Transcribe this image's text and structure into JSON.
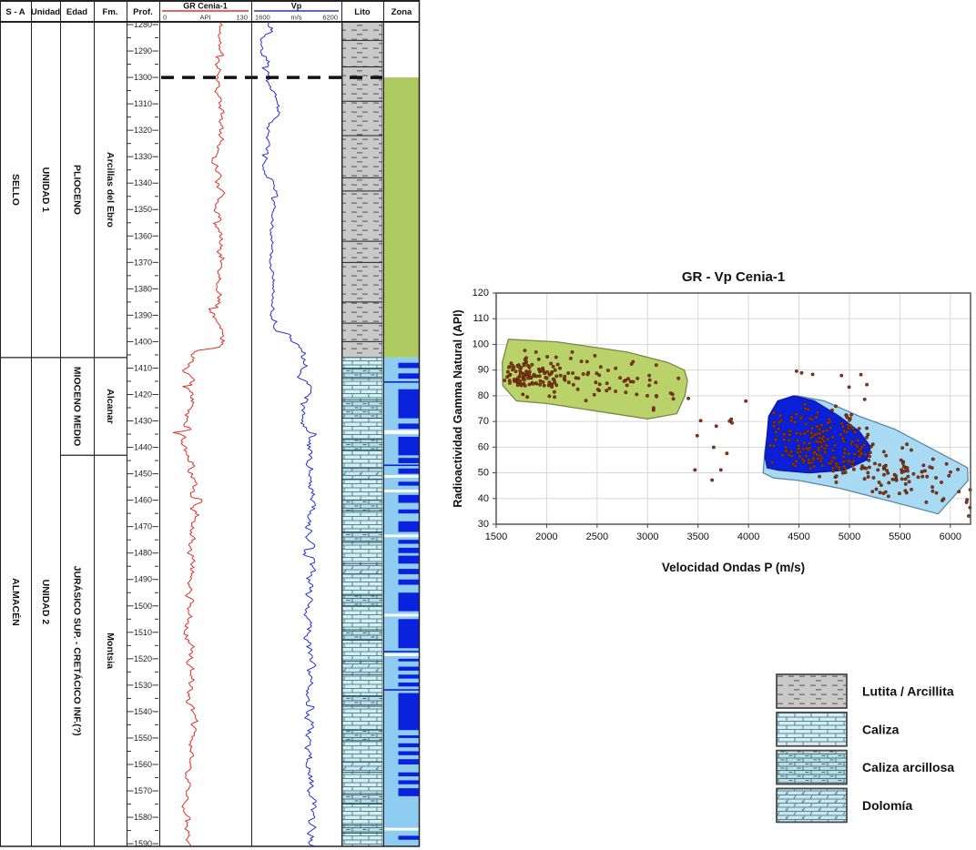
{
  "colors": {
    "gr_curve": "#e03127",
    "vp_curve": "#2b2fd4",
    "zona_green": "#adca60",
    "zona_lightblue": "#8ecdf1",
    "zona_navy": "#0a21dd",
    "marker_line": "#111111",
    "grid_line": "#d8d8d8",
    "lutita_bg": "#c9c9c9",
    "caliza_bg": "#d8edf2",
    "caliza_arcillosa_bg": "#bfdde4",
    "dolomia_bg": "#cde6ee"
  },
  "chart_data": [
    {
      "type": "line",
      "role": "well_log_panel",
      "header": {
        "sa": "S - A",
        "unidad": "Unidad",
        "edad": "Edad",
        "fm": "Fm.",
        "prof": "Prof.",
        "gr_title": "GR Cenia-1",
        "gr_min": "0",
        "gr_unit": "API",
        "gr_max": "130",
        "vp_title": "Vp",
        "vp_min": "1600",
        "vp_unit": "m/s",
        "vp_max": "6200",
        "lito": "Lito",
        "zona": "Zona"
      },
      "depth": {
        "start": 1280,
        "end": 1590,
        "label_step": 10,
        "tick_step": 5,
        "units": "m"
      },
      "marker_depth": 1300,
      "sections": {
        "sa": [
          {
            "label": "SELLO",
            "top": 1279,
            "bottom": 1406
          },
          {
            "label": "ALMACÉN",
            "top": 1406,
            "bottom": 1591
          }
        ],
        "unidad": [
          {
            "label": "UNIDAD 1",
            "top": 1279,
            "bottom": 1406
          },
          {
            "label": "UNIDAD 2",
            "top": 1406,
            "bottom": 1591
          }
        ],
        "edad": [
          {
            "label": "PLIOCENO",
            "top": 1279,
            "bottom": 1406
          },
          {
            "label": "MIOCENO MEDIO",
            "top": 1406,
            "bottom": 1443
          },
          {
            "label": "JURÁSICO SUP. - CRETÁCICO INF.(?)",
            "top": 1443,
            "bottom": 1591
          }
        ],
        "fm": [
          {
            "label": "Arcillas del Ebro",
            "top": 1279,
            "bottom": 1406
          },
          {
            "label": "Alcanar",
            "top": 1406,
            "bottom": 1443
          },
          {
            "label": "Montsia",
            "top": 1443,
            "bottom": 1591
          }
        ]
      },
      "curves": {
        "gr": {
          "name": "GR Cenia-1",
          "units": "API",
          "min": 0,
          "max": 130,
          "seed": 11,
          "segments": [
            [
              1279,
              1402,
              86,
              9
            ],
            [
              1402,
              1443,
              42,
              12
            ],
            [
              1443,
              1470,
              50,
              14
            ],
            [
              1470,
              1560,
              44,
              10
            ],
            [
              1560,
              1591,
              40,
              8
            ]
          ]
        },
        "vp": {
          "name": "Vp",
          "units": "m/s",
          "min": 1600,
          "max": 6200,
          "seed": 23,
          "segments": [
            [
              1279,
              1283,
              2500,
              260
            ],
            [
              1283,
              1292,
              1950,
              220
            ],
            [
              1292,
              1302,
              2620,
              330
            ],
            [
              1302,
              1315,
              2820,
              240
            ],
            [
              1315,
              1338,
              2380,
              260
            ],
            [
              1338,
              1346,
              3150,
              320
            ],
            [
              1346,
              1396,
              2680,
              210
            ],
            [
              1396,
              1404,
              3900,
              420
            ],
            [
              1404,
              1444,
              4380,
              400
            ],
            [
              1444,
              1468,
              4800,
              430
            ],
            [
              1468,
              1520,
              4520,
              400
            ],
            [
              1520,
              1591,
              4620,
              400
            ]
          ]
        }
      },
      "lito": {
        "upper_lutita": {
          "top": 1279,
          "bottom": 1406,
          "pattern": "lutita",
          "bed_lines": [
            1286,
            1296,
            1309,
            1322,
            1338,
            1343,
            1362,
            1370,
            1385,
            1393,
            1400
          ]
        },
        "beds": [
          [
            1406,
            1410,
            "caliza"
          ],
          [
            1410,
            1414,
            "caliza_arcillosa"
          ],
          [
            1414,
            1422,
            "caliza"
          ],
          [
            1422,
            1429,
            "caliza_arcillosa"
          ],
          [
            1429,
            1437,
            "caliza"
          ],
          [
            1437,
            1441,
            "caliza_arcillosa"
          ],
          [
            1441,
            1448,
            "caliza"
          ],
          [
            1448,
            1452,
            "dolomia"
          ],
          [
            1452,
            1460,
            "caliza"
          ],
          [
            1460,
            1464,
            "caliza_arcillosa"
          ],
          [
            1464,
            1472,
            "caliza"
          ],
          [
            1472,
            1476,
            "caliza_arcillosa"
          ],
          [
            1476,
            1484,
            "caliza"
          ],
          [
            1484,
            1488,
            "dolomia"
          ],
          [
            1488,
            1496,
            "caliza"
          ],
          [
            1496,
            1500,
            "caliza_arcillosa"
          ],
          [
            1500,
            1509,
            "caliza"
          ],
          [
            1509,
            1513,
            "caliza_arcillosa"
          ],
          [
            1513,
            1521,
            "caliza"
          ],
          [
            1521,
            1526,
            "dolomia"
          ],
          [
            1526,
            1534,
            "caliza"
          ],
          [
            1534,
            1538,
            "caliza_arcillosa"
          ],
          [
            1538,
            1547,
            "caliza"
          ],
          [
            1547,
            1551,
            "caliza_arcillosa"
          ],
          [
            1551,
            1559,
            "caliza"
          ],
          [
            1559,
            1563,
            "dolomia"
          ],
          [
            1563,
            1571,
            "caliza"
          ],
          [
            1571,
            1575,
            "caliza_arcillosa"
          ],
          [
            1575,
            1583,
            "caliza"
          ],
          [
            1583,
            1586,
            "caliza_arcillosa"
          ],
          [
            1586,
            1591,
            "caliza"
          ]
        ]
      },
      "zona": {
        "white_top": [
          1279,
          1300
        ],
        "green": [
          1300,
          1406
        ],
        "lightblue": [
          1406,
          1591
        ],
        "navy_bands": [
          [
            1408,
            1410
          ],
          [
            1412,
            1414
          ],
          [
            1418,
            1429
          ],
          [
            1431,
            1433
          ],
          [
            1436,
            1443
          ],
          [
            1444,
            1446
          ],
          [
            1448,
            1450
          ],
          [
            1453,
            1454.5
          ],
          [
            1458,
            1461
          ],
          [
            1463.5,
            1465
          ],
          [
            1468,
            1472
          ],
          [
            1475,
            1476.5
          ],
          [
            1478,
            1480
          ],
          [
            1481,
            1484
          ],
          [
            1486,
            1488
          ],
          [
            1490,
            1492
          ],
          [
            1495,
            1502
          ],
          [
            1505,
            1516
          ],
          [
            1520,
            1521
          ],
          [
            1523,
            1524.5
          ],
          [
            1526,
            1527.5
          ],
          [
            1529,
            1530.5
          ],
          [
            1533,
            1547
          ],
          [
            1549,
            1550
          ],
          [
            1552,
            1553.5
          ],
          [
            1555,
            1556.5
          ],
          [
            1558,
            1560
          ],
          [
            1563,
            1564.5
          ],
          [
            1566,
            1567.5
          ],
          [
            1569,
            1572
          ],
          [
            1587,
            1588.5
          ]
        ],
        "navy_lines": [
          1415,
          1446.5,
          1517,
          1531.5
        ],
        "white_gaps": [
          [
            1433.5,
            1435
          ],
          [
            1450.5,
            1451.5
          ],
          [
            1456,
            1457
          ],
          [
            1473,
            1474
          ],
          [
            1503,
            1504
          ],
          [
            1518,
            1519
          ],
          [
            1584,
            1585
          ]
        ]
      }
    },
    {
      "type": "scatter",
      "title": "GR - Vp Cenia-1",
      "xlabel": "Velocidad Ondas P (m/s)",
      "ylabel": "Radioactividad Gamma Natural (API)",
      "xlim": [
        1500,
        6200
      ],
      "ylim": [
        30,
        120
      ],
      "x_ticks": [
        1500,
        2000,
        2500,
        3000,
        3500,
        4000,
        4500,
        5000,
        5500,
        6000
      ],
      "y_ticks": [
        30,
        40,
        50,
        60,
        70,
        80,
        90,
        100,
        110,
        120
      ],
      "grid": true,
      "legend_position": "none",
      "regions": [
        {
          "name": "lutita-arcillita",
          "fill": "#b9d36a",
          "stroke": "#77884b",
          "vertices": [
            [
              1565,
              84
            ],
            [
              1560,
              93
            ],
            [
              1620,
              102
            ],
            [
              2100,
              101
            ],
            [
              2800,
              97
            ],
            [
              3200,
              93
            ],
            [
              3365,
              90
            ],
            [
              3395,
              86
            ],
            [
              3370,
              80
            ],
            [
              3290,
              73
            ],
            [
              3000,
              71
            ],
            [
              2500,
              74
            ],
            [
              2000,
              77
            ],
            [
              1700,
              78
            ]
          ]
        },
        {
          "name": "caliza-dolomia",
          "fill": "#a8daf4",
          "stroke": "#5b87a8",
          "vertices": [
            [
              4145,
              50
            ],
            [
              4160,
              58
            ],
            [
              4210,
              72
            ],
            [
              4300,
              78
            ],
            [
              4480,
              80
            ],
            [
              4750,
              78
            ],
            [
              5100,
              72
            ],
            [
              5450,
              67
            ],
            [
              6170,
              52
            ],
            [
              6175,
              47
            ],
            [
              5880,
              34
            ],
            [
              5400,
              39
            ],
            [
              4900,
              44
            ],
            [
              4500,
              47
            ],
            [
              4250,
              48
            ]
          ]
        },
        {
          "name": "caliza-arcillosa",
          "fill": "#0b1fd6",
          "stroke": "#0a16a0",
          "vertices": [
            [
              4165,
              56
            ],
            [
              4200,
              72
            ],
            [
              4290,
              78
            ],
            [
              4450,
              80
            ],
            [
              4650,
              78
            ],
            [
              4900,
              72
            ],
            [
              5100,
              66
            ],
            [
              5210,
              60
            ],
            [
              5170,
              55
            ],
            [
              4950,
              51
            ],
            [
              4600,
              50
            ],
            [
              4300,
              51
            ],
            [
              4185,
              52
            ]
          ]
        }
      ],
      "point_style": {
        "fill": "#8f3a16",
        "stroke": "#4b1c08",
        "radius": 1.6
      },
      "seed": 7,
      "clusters": [
        {
          "type": "gauss",
          "count": 115,
          "cx": 1830,
          "cy": 88,
          "sx": 190,
          "sy": 3.4,
          "clip": [
            1555,
            3350,
            79,
            101
          ]
        },
        {
          "type": "gauss",
          "count": 60,
          "cx": 2600,
          "cy": 86,
          "sx": 430,
          "sy": 4.5,
          "slope": -0.004,
          "clip": [
            1900,
            3360,
            72,
            100
          ]
        },
        {
          "type": "uniform",
          "count": 13,
          "x0": 3380,
          "x1": 4150,
          "y0": 44,
          "y1": 80
        },
        {
          "type": "gauss",
          "count": 150,
          "cx": 4680,
          "cy": 63,
          "sx": 270,
          "sy": 7,
          "clip": [
            4180,
            5240,
            50,
            79
          ]
        },
        {
          "type": "gauss",
          "count": 135,
          "cx": 5350,
          "cy": 50,
          "sx": 430,
          "sy": 5.5,
          "slope": -0.008,
          "clip": [
            4300,
            6230,
            34,
            66
          ]
        },
        {
          "type": "uniform",
          "count": 7,
          "x0": 4200,
          "x1": 5200,
          "y0": 80,
          "y1": 91
        },
        {
          "type": "uniform",
          "count": 4,
          "x0": 6160,
          "x1": 6230,
          "y0": 30,
          "y1": 46
        }
      ]
    }
  ],
  "legend": {
    "items": [
      {
        "pattern": "lutita",
        "label": "Lutita / Arcillita"
      },
      {
        "pattern": "caliza",
        "label": "Caliza"
      },
      {
        "pattern": "caliza_arcillosa",
        "label": "Caliza arcillosa"
      },
      {
        "pattern": "dolomia",
        "label": "Dolomía"
      }
    ]
  }
}
